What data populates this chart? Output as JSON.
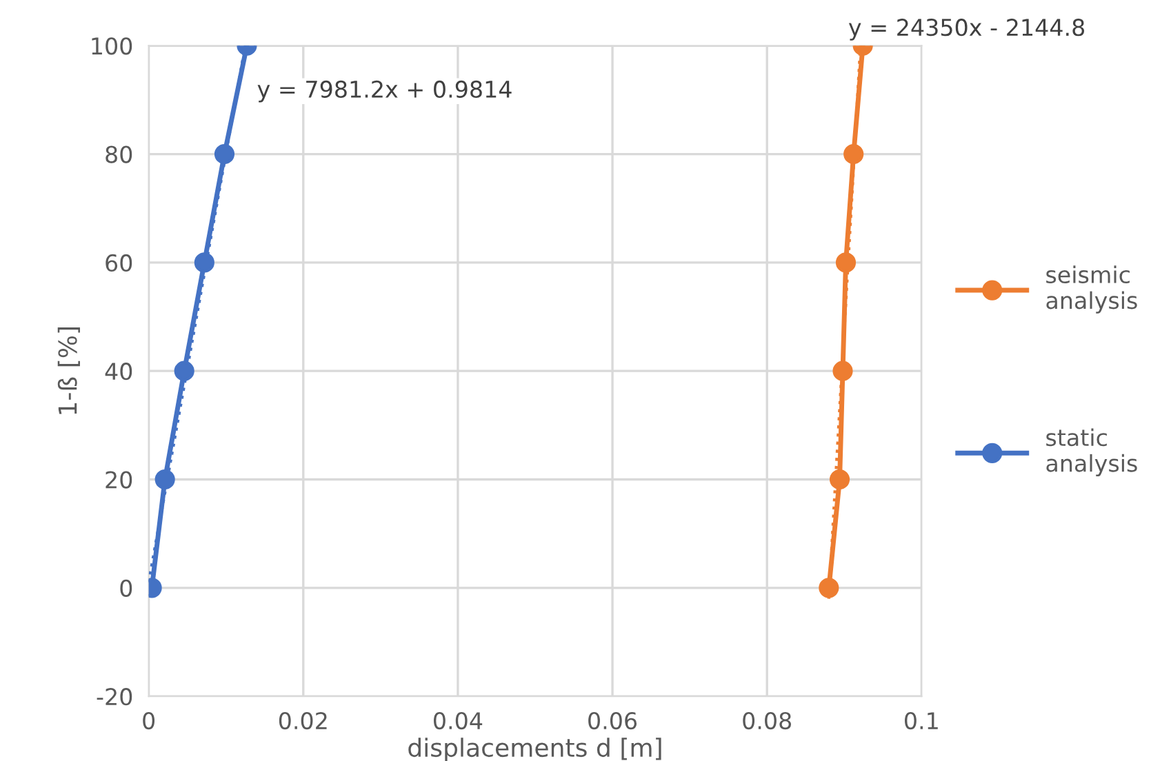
{
  "chart_data": {
    "type": "line",
    "xlabel": "displacements d [m]",
    "ylabel": "1-ß [%]",
    "xlim": [
      0,
      0.1
    ],
    "ylim": [
      -20,
      100
    ],
    "xticks": [
      0,
      0.02,
      0.04,
      0.06,
      0.08,
      0.1
    ],
    "yticks": [
      -20,
      0,
      20,
      40,
      60,
      80,
      100
    ],
    "grid": true,
    "legend": "right",
    "series": [
      {
        "name": "seismic analysis",
        "color": "#ed7d31",
        "marker": "circle",
        "x": [
          0.088,
          0.0894,
          0.0898,
          0.0902,
          0.0912,
          0.0924
        ],
        "values": [
          0,
          20,
          40,
          60,
          80,
          100
        ]
      },
      {
        "name": "static analysis",
        "color": "#4472c4",
        "marker": "circle",
        "x": [
          0.0004,
          0.0021,
          0.0046,
          0.0072,
          0.0098,
          0.0127
        ],
        "values": [
          0,
          20,
          40,
          60,
          80,
          100
        ]
      },
      {
        "color": "#4472c4",
        "marker": "none",
        "line_style": "dotted",
        "x": [
          0.0,
          0.0125
        ],
        "values": [
          1.0,
          100
        ]
      },
      {
        "color": "#ed7d31",
        "marker": "none",
        "line_style": "dotted",
        "x": [
          0.088,
          0.0921
        ],
        "values": [
          -2,
          100
        ]
      }
    ],
    "annotations": [
      "y = 7981.2x + 0.9814",
      "y = 24350x - 2144.8"
    ]
  }
}
